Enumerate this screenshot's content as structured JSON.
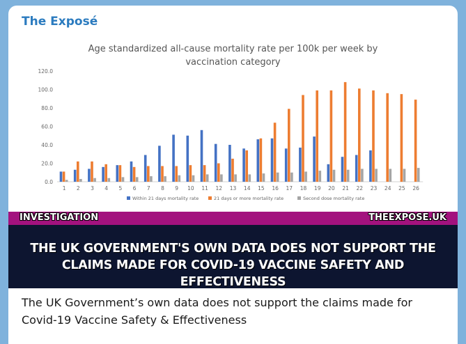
{
  "post": {
    "source_name": "The Exposé",
    "caption": "The UK Government’s own data does not support the claims made for Covid-19 Vaccine Safety & Effectiveness"
  },
  "banner": {
    "label_left": "INVESTIGATION",
    "label_right": "THEEXPOSE.UK",
    "headline_line1": "THE UK GOVERNMENT'S OWN DATA DOES NOT SUPPORT THE",
    "headline_line2": "CLAIMS MADE FOR COVID-19 VACCINE SAFETY AND EFFECTIVENESS"
  },
  "colors": {
    "series_within21": "#4472c4",
    "series_21plus": "#ed7d31",
    "series_second": "#a5a5a5",
    "strip": "#a3127e",
    "headline_bg": "#0d1530",
    "source": "#2b7bbf"
  },
  "chart_data": {
    "type": "bar",
    "title_line1": "Age standardized all-cause mortality rate per 100k per week by",
    "title_line2": "vaccination category",
    "categories": [
      "1",
      "2",
      "3",
      "4",
      "5",
      "6",
      "7",
      "8",
      "9",
      "10",
      "11",
      "12",
      "13",
      "14",
      "15",
      "16",
      "17",
      "18",
      "19",
      "20",
      "21",
      "22",
      "23",
      "24",
      "25",
      "26"
    ],
    "y_ticks": [
      "0.0",
      "20.0",
      "40.0",
      "60.0",
      "80.0",
      "100.0",
      "120.0"
    ],
    "ylim": [
      0,
      120
    ],
    "grid": false,
    "legend_position": "bottom",
    "series": [
      {
        "name": "Within 21 days mortality rate",
        "values": [
          11,
          13,
          14,
          16,
          18,
          22,
          29,
          39,
          51,
          50,
          56,
          41,
          40,
          36,
          46,
          47,
          36,
          37,
          49,
          19,
          27,
          29,
          34,
          null,
          null,
          null
        ]
      },
      {
        "name": "21 days or more mortality rate",
        "values": [
          11,
          22,
          22,
          19,
          18,
          16,
          17,
          17,
          17,
          18,
          18,
          20,
          25,
          34,
          47,
          64,
          79,
          94,
          99,
          99,
          108,
          101,
          99,
          96,
          95,
          89
        ]
      },
      {
        "name": "Second dose mortality rate",
        "values": [
          2,
          3,
          4,
          4,
          5,
          5,
          6,
          6,
          7,
          7,
          8,
          8,
          8,
          8,
          9,
          10,
          10,
          11,
          12,
          13,
          13,
          14,
          14,
          14,
          14,
          15
        ]
      }
    ]
  }
}
